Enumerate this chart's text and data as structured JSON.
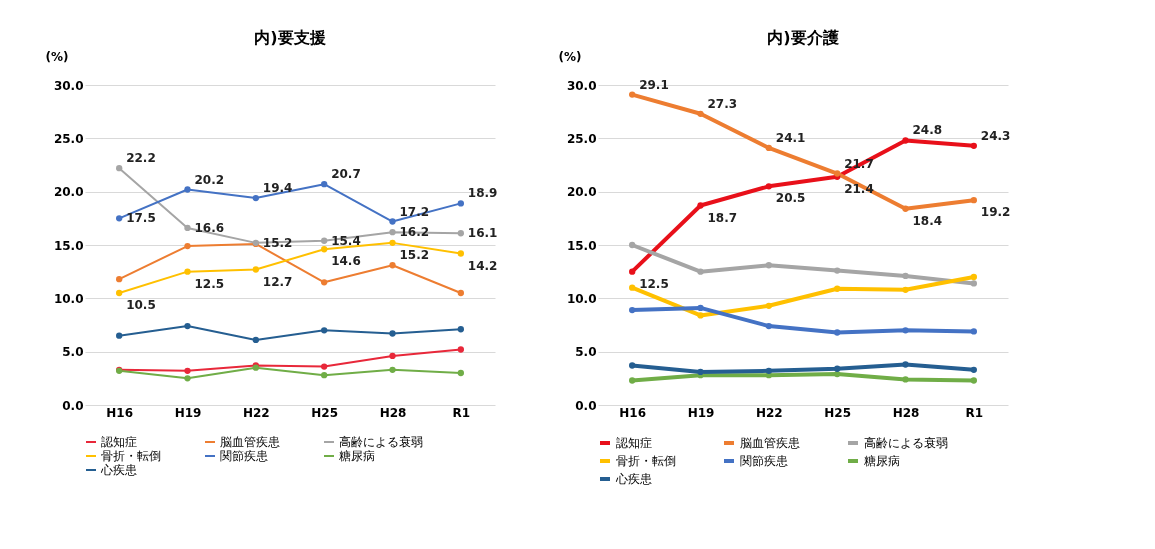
{
  "chart_data": [
    {
      "type": "line",
      "title": "内)要支援",
      "ylabel": "(%)",
      "categories": [
        "H16",
        "H19",
        "H22",
        "H25",
        "H28",
        "R1"
      ],
      "ylim": [
        0,
        30
      ],
      "yticks": [
        {
          "value": 0,
          "label": "0.0"
        },
        {
          "value": 5,
          "label": "5.0"
        },
        {
          "value": 10,
          "label": "10.0"
        },
        {
          "value": 15,
          "label": "15.0"
        },
        {
          "value": 20,
          "label": "20.0"
        },
        {
          "value": 25,
          "label": "25.0"
        },
        {
          "value": 30,
          "label": "30.0"
        }
      ],
      "grid": "y",
      "legend": "bottom",
      "marker": "circle",
      "line_style": "solid",
      "series": [
        {
          "name": "認知症",
          "color": "#e8283a",
          "values": [
            3.3,
            3.2,
            3.7,
            3.6,
            4.6,
            5.2
          ]
        },
        {
          "name": "脳血管疾患",
          "color": "#ed7d31",
          "values": [
            11.8,
            14.9,
            15.1,
            11.5,
            13.1,
            10.5
          ]
        },
        {
          "name": "高齢による衰弱",
          "color": "#a5a5a5",
          "values": [
            22.2,
            16.6,
            15.2,
            15.4,
            16.2,
            16.1
          ],
          "value_labels": [
            "22.2",
            "16.6",
            "15.2",
            "15.4",
            "16.2",
            "16.1"
          ]
        },
        {
          "name": "骨折・転倒",
          "color": "#ffc000",
          "values": [
            10.5,
            12.5,
            12.7,
            14.6,
            15.2,
            14.2
          ],
          "value_labels": [
            "10.5",
            "12.5",
            "12.7",
            "14.6",
            "15.2",
            "14.2"
          ]
        },
        {
          "name": "関節疾患",
          "color": "#4472c4",
          "values": [
            17.5,
            20.2,
            19.4,
            20.7,
            17.2,
            18.9
          ],
          "value_labels": [
            "17.5",
            "20.2",
            "19.4",
            "20.7",
            "17.2",
            "18.9"
          ]
        },
        {
          "name": "糖尿病",
          "color": "#70ad47",
          "values": [
            3.2,
            2.5,
            3.5,
            2.8,
            3.3,
            3.0
          ]
        },
        {
          "name": "心疾患",
          "color": "#255e91",
          "values": [
            6.5,
            7.4,
            6.1,
            7.0,
            6.7,
            7.1
          ]
        }
      ]
    },
    {
      "type": "line",
      "title": "内)要介護",
      "ylabel": "(%)",
      "categories": [
        "H16",
        "H19",
        "H22",
        "H25",
        "H28",
        "R1"
      ],
      "ylim": [
        0,
        30
      ],
      "yticks": [
        {
          "value": 0,
          "label": "0.0"
        },
        {
          "value": 5,
          "label": "5.0"
        },
        {
          "value": 10,
          "label": "10.0"
        },
        {
          "value": 15,
          "label": "15.0"
        },
        {
          "value": 20,
          "label": "20.0"
        },
        {
          "value": 25,
          "label": "25.0"
        },
        {
          "value": 30,
          "label": "30.0"
        }
      ],
      "grid": "y",
      "legend": "bottom",
      "marker": "circle",
      "line_style": "solid",
      "series": [
        {
          "name": "認知症",
          "color": "#e8101a",
          "values": [
            12.5,
            18.7,
            20.5,
            21.4,
            24.8,
            24.3
          ],
          "value_labels": [
            "12.5",
            "18.7",
            "20.5",
            "21.4",
            "24.8",
            "24.3"
          ]
        },
        {
          "name": "脳血管疾患",
          "color": "#ed7d31",
          "values": [
            29.1,
            27.3,
            24.1,
            21.7,
            18.4,
            19.2
          ],
          "value_labels": [
            "29.1",
            "27.3",
            "24.1",
            "21.7",
            "18.4",
            "19.2"
          ]
        },
        {
          "name": "高齢による衰弱",
          "color": "#a5a5a5",
          "values": [
            15.0,
            12.5,
            13.1,
            12.6,
            12.1,
            11.4
          ]
        },
        {
          "name": "骨折・転倒",
          "color": "#ffc000",
          "values": [
            11.0,
            8.4,
            9.3,
            10.9,
            10.8,
            12.0
          ]
        },
        {
          "name": "関節疾患",
          "color": "#4472c4",
          "values": [
            8.9,
            9.1,
            7.4,
            6.8,
            7.0,
            6.9
          ]
        },
        {
          "name": "糖尿病",
          "color": "#70ad47",
          "values": [
            2.3,
            2.8,
            2.8,
            2.9,
            2.4,
            2.3
          ]
        },
        {
          "name": "心疾患",
          "color": "#255e91",
          "values": [
            3.7,
            3.1,
            3.2,
            3.4,
            3.8,
            3.3
          ]
        }
      ]
    }
  ]
}
